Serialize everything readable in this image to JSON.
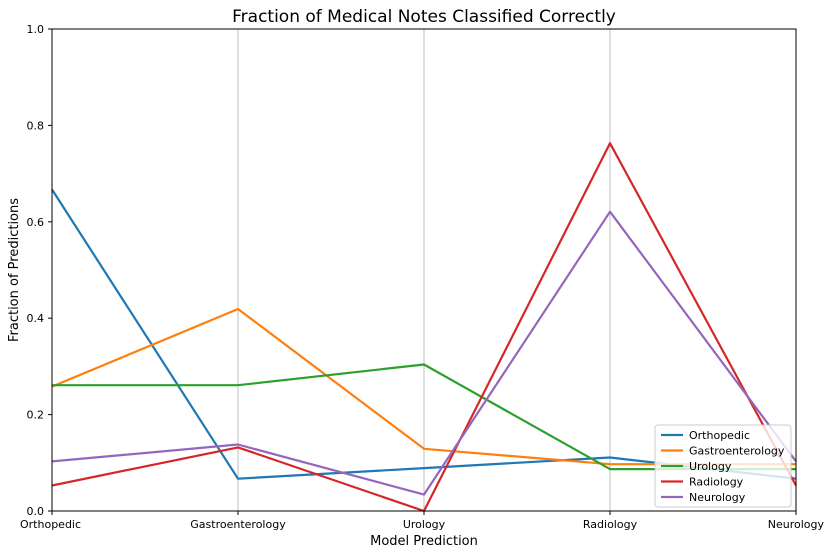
{
  "chart_data": {
    "type": "line",
    "title": "Fraction of Medical Notes Classified Correctly",
    "xlabel": "Model Prediction",
    "ylabel": "Fraction of Predictions",
    "categories": [
      "Orthopedic",
      "Gastroenterology",
      "Urology",
      "Radiology",
      "Neurology"
    ],
    "ylim": [
      0,
      1
    ],
    "yticks": [
      "0.0",
      "0.2",
      "0.4",
      "0.6",
      "0.8",
      "1.0"
    ],
    "grid": "vertical",
    "legend_position": "lower-right",
    "series": [
      {
        "name": "Orthopedic",
        "color": "#1f77b4",
        "values": [
          0.667,
          0.067,
          0.089,
          0.111,
          0.067
        ]
      },
      {
        "name": "Gastroenterology",
        "color": "#ff7f0e",
        "values": [
          0.258,
          0.419,
          0.129,
          0.097,
          0.097
        ]
      },
      {
        "name": "Urology",
        "color": "#2ca02c",
        "values": [
          0.261,
          0.261,
          0.304,
          0.087,
          0.087
        ]
      },
      {
        "name": "Radiology",
        "color": "#d62728",
        "values": [
          0.053,
          0.132,
          0.0,
          0.763,
          0.053
        ]
      },
      {
        "name": "Neurology",
        "color": "#9467bd",
        "values": [
          0.103,
          0.138,
          0.034,
          0.621,
          0.103
        ]
      }
    ]
  }
}
